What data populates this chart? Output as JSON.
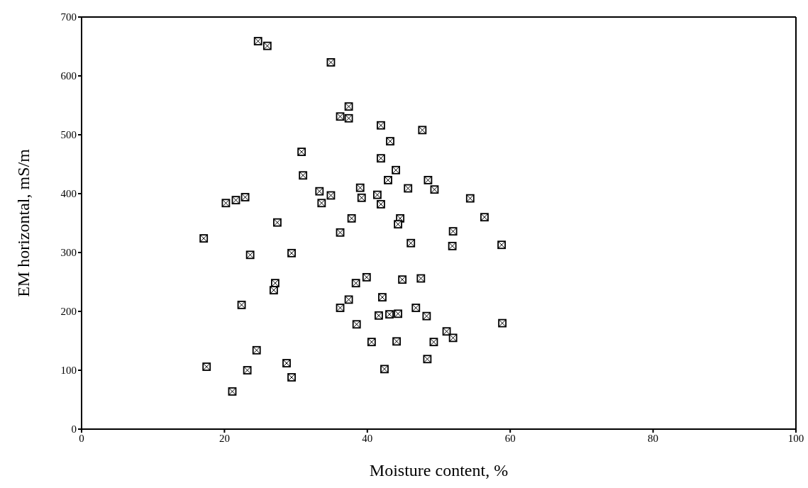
{
  "chart_data": {
    "type": "scatter",
    "xlabel": "Moisture content, %",
    "ylabel": "EM horizontal, mS/m",
    "x": [
      24.7,
      26.0,
      34.9,
      37.4,
      36.2,
      37.4,
      30.8,
      31.0,
      20.2,
      21.6,
      22.9,
      33.3,
      34.9,
      33.6,
      27.4,
      41.9,
      47.7,
      43.2,
      41.9,
      44.0,
      42.9,
      48.5,
      39.0,
      45.7,
      49.4,
      39.2,
      54.4,
      41.4,
      41.9,
      37.8,
      44.6,
      44.3,
      56.4,
      17.1,
      23.6,
      29.4,
      36.2,
      27.1,
      26.9,
      22.4,
      37.4,
      36.2,
      24.5,
      17.5,
      23.2,
      28.7,
      29.4,
      21.1,
      52.0,
      46.1,
      51.9,
      58.8,
      39.9,
      38.4,
      44.9,
      47.5,
      42.1,
      46.8,
      41.6,
      43.1,
      44.3,
      48.3,
      38.5,
      58.9,
      51.1,
      52.0,
      40.6,
      44.1,
      49.3,
      48.4,
      42.4
    ],
    "values": [
      659,
      651,
      623,
      548,
      531,
      528,
      471,
      431,
      384,
      389,
      394,
      404,
      397,
      384,
      351,
      516,
      508,
      489,
      460,
      440,
      423,
      423,
      410,
      409,
      407,
      393,
      392,
      398,
      382,
      358,
      358,
      348,
      360,
      324,
      296,
      299,
      334,
      248,
      236,
      211,
      220,
      206,
      134,
      106,
      100,
      112,
      88,
      64,
      336,
      316,
      311,
      313,
      258,
      248,
      254,
      256,
      224,
      206,
      193,
      195,
      196,
      192,
      178,
      180,
      166,
      155,
      148,
      149,
      148,
      119,
      102
    ],
    "color": "#000000",
    "marker": "square",
    "xlim": [
      0,
      100
    ],
    "xticks": [
      0,
      20,
      40,
      60,
      80,
      100
    ],
    "ylim": [
      0,
      700
    ],
    "yticks": [
      0,
      100,
      200,
      300,
      400,
      500,
      600,
      700
    ],
    "grid": false,
    "legend": false
  }
}
